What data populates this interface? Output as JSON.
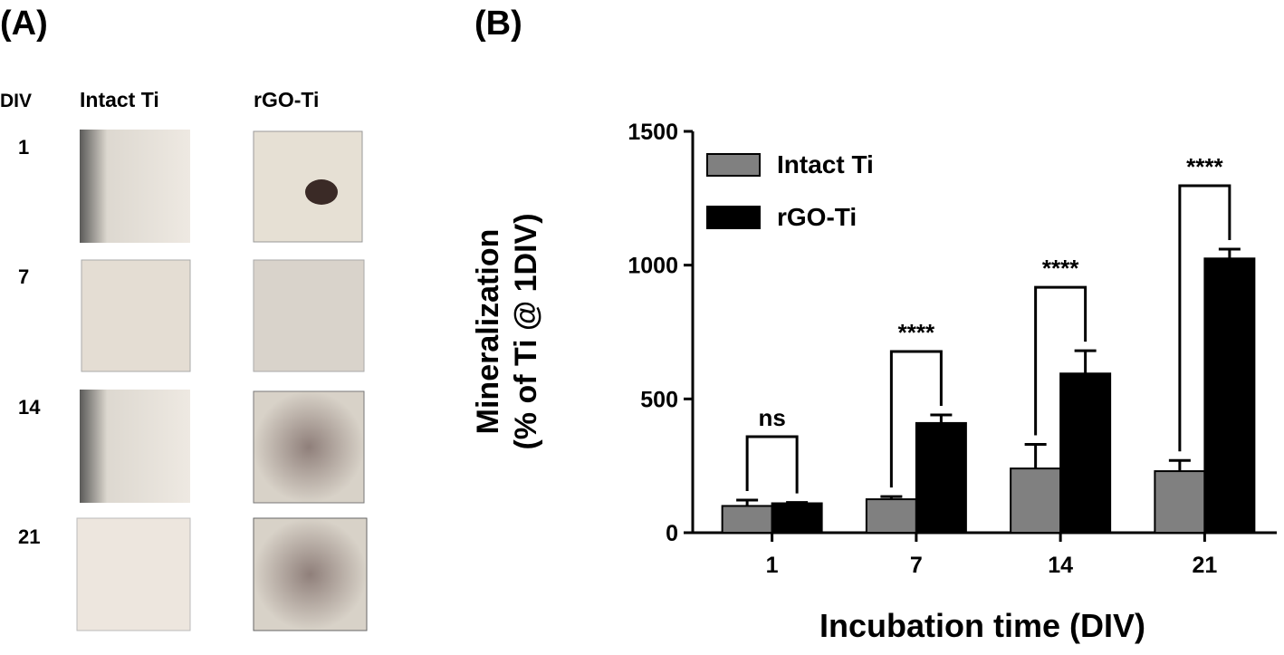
{
  "panel_labels": [
    "(A)",
    "(B)"
  ],
  "panel_a": {
    "column_header": "DIV",
    "columns": [
      "Intact Ti",
      "rGO-Ti"
    ],
    "rows": [
      "1",
      "7",
      "14",
      "21"
    ]
  },
  "chart_data": {
    "type": "bar",
    "ylabel": [
      "Mineralization",
      "(% of Ti @ 1DIV)"
    ],
    "xlabel": "Incubation time (DIV)",
    "categories": [
      "1",
      "7",
      "14",
      "21"
    ],
    "series": [
      {
        "name": "Intact Ti",
        "color": "#808080",
        "values": [
          100,
          125,
          240,
          230
        ],
        "errors": [
          22,
          10,
          90,
          40
        ]
      },
      {
        "name": "rGO-Ti",
        "color": "#000000",
        "values": [
          110,
          410,
          595,
          1025
        ],
        "errors": [
          3,
          30,
          85,
          35
        ]
      }
    ],
    "annotations": [
      "ns",
      "****",
      "****",
      "****"
    ],
    "ylim": [
      0,
      1500
    ],
    "yticks": [
      0,
      500,
      1000,
      1500
    ],
    "legend": "upper-left"
  }
}
